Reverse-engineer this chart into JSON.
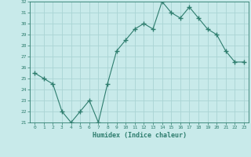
{
  "x": [
    0,
    1,
    2,
    3,
    4,
    5,
    6,
    7,
    8,
    9,
    10,
    11,
    12,
    13,
    14,
    15,
    16,
    17,
    18,
    19,
    20,
    21,
    22,
    23
  ],
  "y": [
    25.5,
    25.0,
    24.5,
    22.0,
    21.0,
    22.0,
    23.0,
    21.0,
    24.5,
    27.5,
    28.5,
    29.5,
    30.0,
    29.5,
    32.0,
    31.0,
    30.5,
    31.5,
    30.5,
    29.5,
    29.0,
    27.5,
    26.5,
    26.5
  ],
  "ylim": [
    21,
    32
  ],
  "yticks": [
    21,
    22,
    23,
    24,
    25,
    26,
    27,
    28,
    29,
    30,
    31,
    32
  ],
  "xlabel": "Humidex (Indice chaleur)",
  "bg_color": "#c8eaea",
  "line_color": "#2e7d6e",
  "grid_color": "#aad4d4",
  "title": ""
}
